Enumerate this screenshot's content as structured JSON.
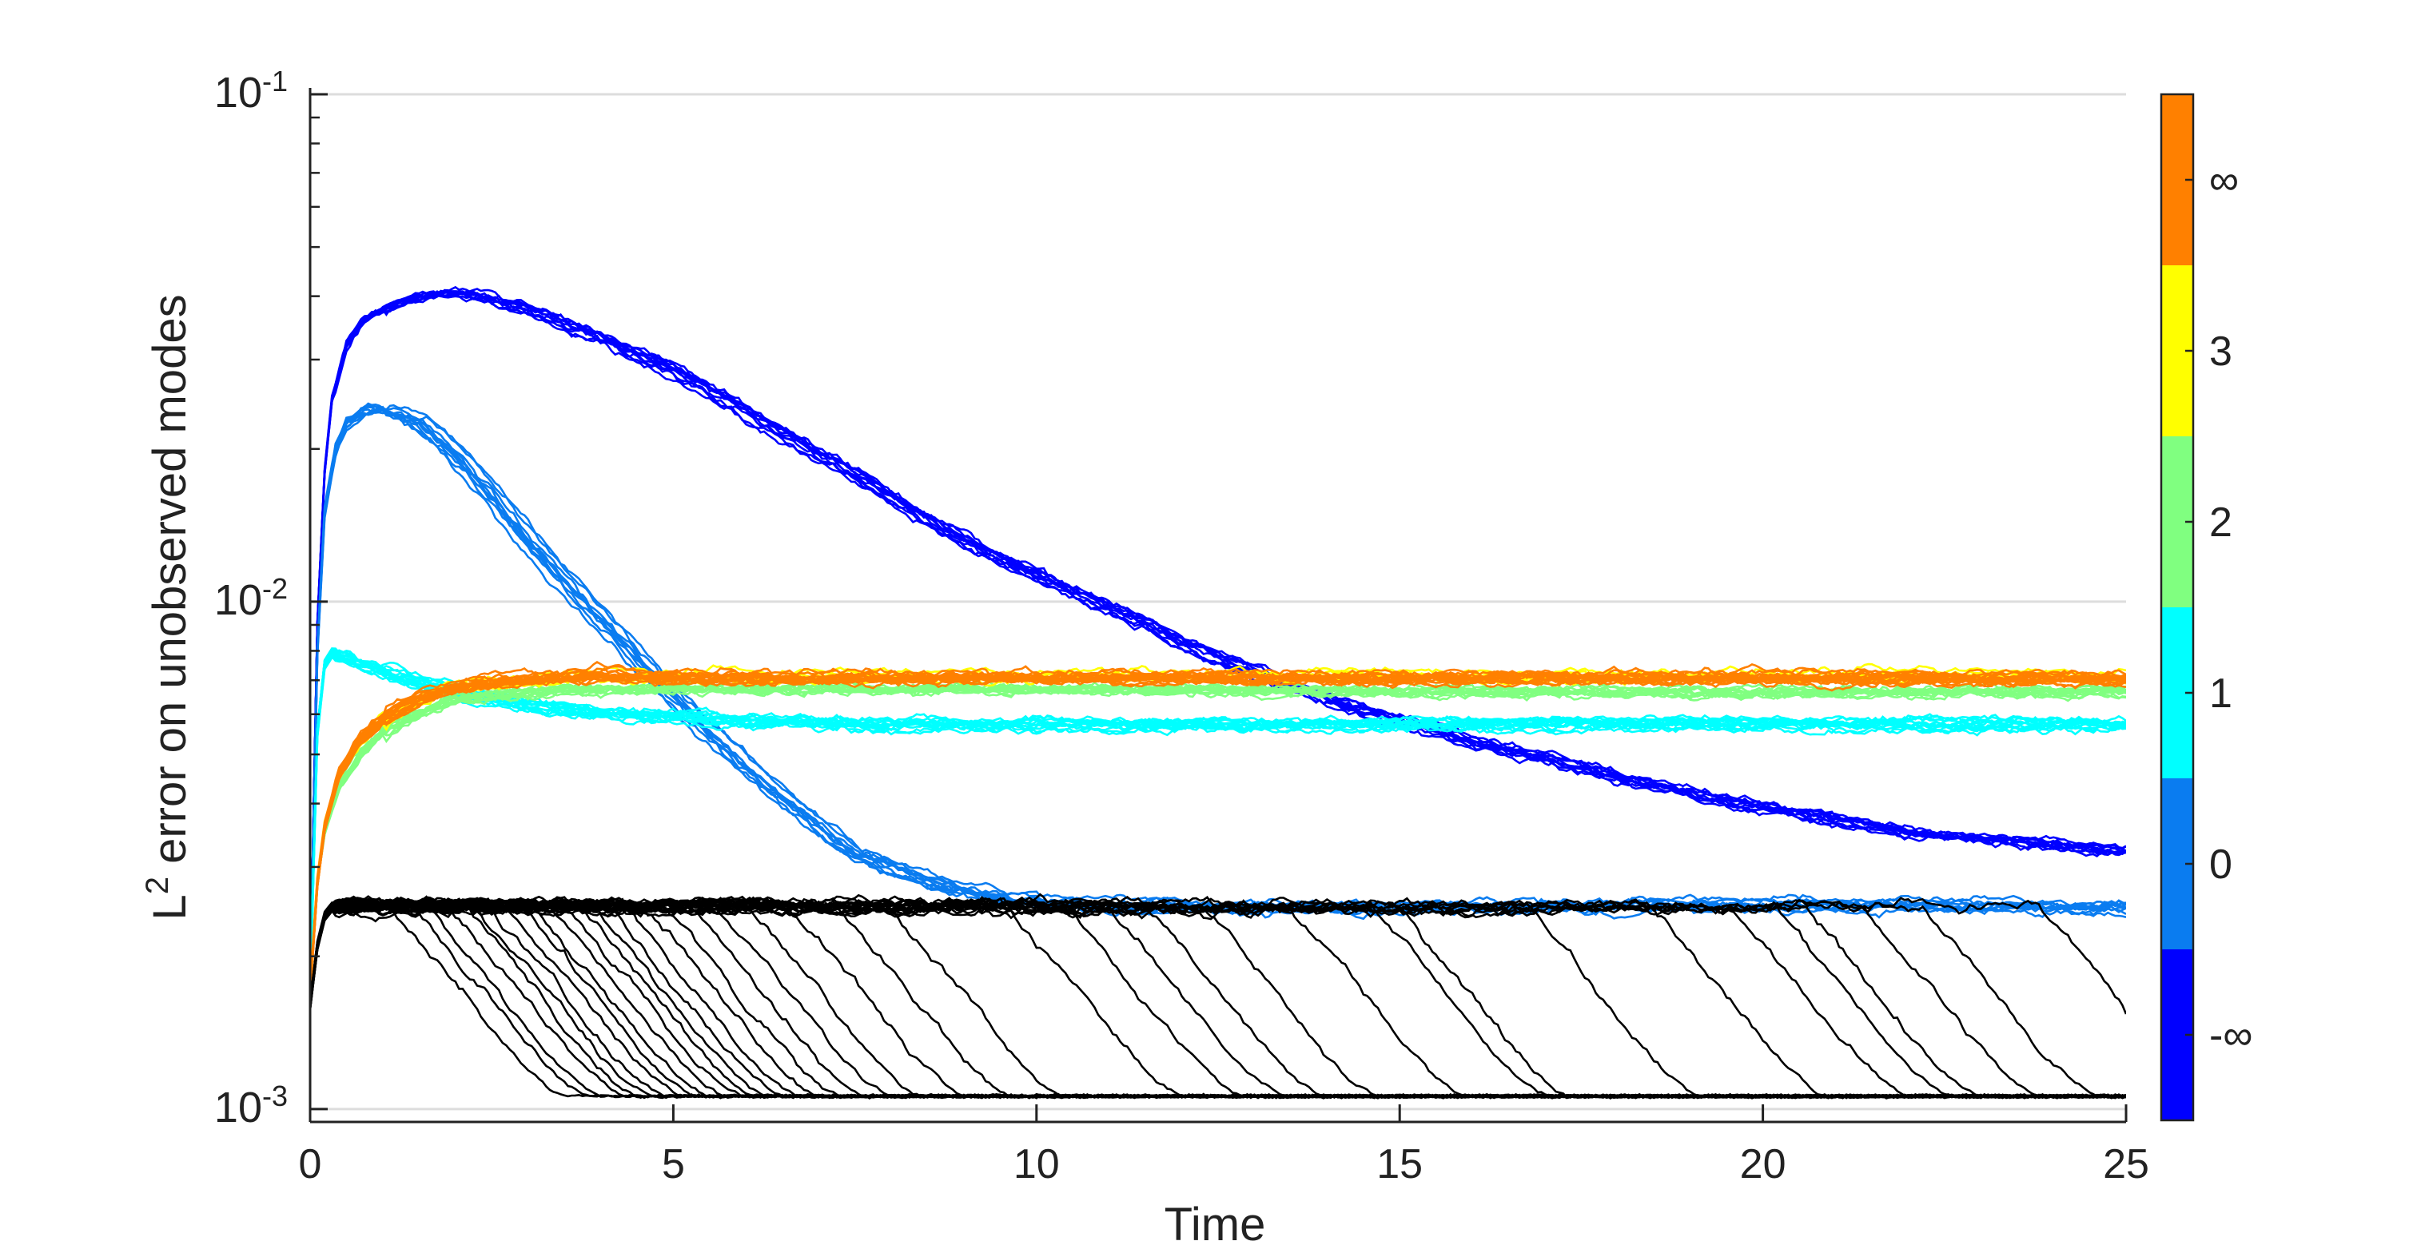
{
  "chart_data": {
    "type": "line",
    "title": "",
    "xlabel": "Time",
    "ylabel": "L",
    "ylabel_sup": "2",
    "ylabel_rest": " error on unobserved modes",
    "xlim": [
      0,
      25
    ],
    "ylim": [
      0.00095,
      0.1
    ],
    "yscale": "log",
    "grid": "y-major",
    "x_ticks": [
      0,
      5,
      10,
      15,
      20,
      25
    ],
    "x_tick_labels": [
      "0",
      "5",
      "10",
      "15",
      "20",
      "25"
    ],
    "y_ticks": [
      {
        "value": 0.1,
        "base": "10",
        "exp": "-1"
      },
      {
        "value": 0.01,
        "base": "10",
        "exp": "-2"
      },
      {
        "value": 0.001,
        "base": "10",
        "exp": "-3"
      }
    ],
    "colorbar": {
      "position": "right",
      "segments": [
        {
          "label": "-∞",
          "color": "#0000ff"
        },
        {
          "label": "0",
          "color": "#0a7cf0"
        },
        {
          "label": "1",
          "color": "#00ffff"
        },
        {
          "label": "2",
          "color": "#80ff80"
        },
        {
          "label": "3",
          "color": "#ffff00"
        },
        {
          "label": "∞",
          "color": "#ff8000"
        }
      ]
    },
    "series": [
      {
        "name": "-∞",
        "color": "#0000ff",
        "count": 10,
        "x": [
          0,
          0.1,
          0.2,
          0.3,
          0.5,
          0.75,
          1,
          1.5,
          2,
          2.5,
          3,
          4,
          5,
          6,
          7,
          8,
          9,
          10,
          11,
          12,
          13,
          14,
          15,
          16,
          17,
          18,
          19,
          20,
          21,
          22,
          23,
          24,
          25
        ],
        "y": [
          0.0017,
          0.009,
          0.018,
          0.025,
          0.032,
          0.036,
          0.038,
          0.0398,
          0.0405,
          0.0395,
          0.0375,
          0.033,
          0.0285,
          0.0235,
          0.0195,
          0.016,
          0.0132,
          0.0112,
          0.0097,
          0.0083,
          0.0073,
          0.0064,
          0.0058,
          0.0053,
          0.0049,
          0.0045,
          0.0042,
          0.0039,
          0.0037,
          0.0035,
          0.0034,
          0.0033,
          0.0032
        ]
      },
      {
        "name": "0",
        "color": "#0a7cf0",
        "count": 10,
        "x": [
          0,
          0.1,
          0.2,
          0.35,
          0.5,
          0.75,
          1,
          1.5,
          2,
          2.5,
          3,
          3.5,
          4,
          4.5,
          5,
          5.5,
          6,
          6.5,
          7,
          7.5,
          8,
          8.5,
          9,
          10,
          12,
          15,
          20,
          25
        ],
        "y": [
          0.0017,
          0.008,
          0.015,
          0.02,
          0.0225,
          0.0238,
          0.024,
          0.0225,
          0.0195,
          0.0162,
          0.0132,
          0.011,
          0.0092,
          0.0077,
          0.0065,
          0.0055,
          0.0047,
          0.0041,
          0.0036,
          0.0032,
          0.003,
          0.0028,
          0.0027,
          0.00255,
          0.0025,
          0.0025,
          0.00252,
          0.0025
        ]
      },
      {
        "name": "1",
        "color": "#00ffff",
        "count": 14,
        "x": [
          0,
          0.1,
          0.2,
          0.3,
          0.5,
          1,
          2,
          3,
          4,
          6,
          8,
          10,
          15,
          20,
          25
        ],
        "y": [
          0.0017,
          0.0055,
          0.0075,
          0.0079,
          0.0077,
          0.0072,
          0.0066,
          0.0062,
          0.006,
          0.0058,
          0.0057,
          0.0057,
          0.0057,
          0.0057,
          0.0057
        ]
      },
      {
        "name": "2",
        "color": "#80ff80",
        "count": 12,
        "x": [
          0,
          0.1,
          0.2,
          0.4,
          0.7,
          1,
          1.5,
          2,
          3,
          4,
          6,
          10,
          15,
          20,
          25
        ],
        "y": [
          0.0017,
          0.0028,
          0.0035,
          0.0043,
          0.005,
          0.0055,
          0.006,
          0.0064,
          0.0066,
          0.0067,
          0.0067,
          0.0067,
          0.0066,
          0.0066,
          0.0066
        ]
      },
      {
        "name": "3",
        "color": "#ffff00",
        "count": 6,
        "x": [
          0,
          0.1,
          0.2,
          0.4,
          0.7,
          1,
          1.5,
          2,
          3,
          4,
          6,
          10,
          15,
          20,
          25
        ],
        "y": [
          0.0017,
          0.0028,
          0.0036,
          0.0045,
          0.0053,
          0.0058,
          0.0064,
          0.0068,
          0.007,
          0.0071,
          0.0071,
          0.0071,
          0.0071,
          0.0071,
          0.0071
        ]
      },
      {
        "name": "∞",
        "color": "#ff8000",
        "count": 16,
        "x": [
          0,
          0.1,
          0.2,
          0.4,
          0.7,
          1,
          1.5,
          2,
          3,
          4,
          6,
          10,
          15,
          20,
          25
        ],
        "y": [
          0.0017,
          0.0028,
          0.0036,
          0.0046,
          0.0054,
          0.0059,
          0.0065,
          0.0068,
          0.0071,
          0.0072,
          0.0071,
          0.0071,
          0.0071,
          0.0071,
          0.0071
        ]
      },
      {
        "name": "black",
        "color": "#000000",
        "count": 40,
        "plateau_x": [
          0,
          0.1,
          0.2,
          0.3,
          0.5,
          1,
          25
        ],
        "plateau_y": [
          0.0016,
          0.0021,
          0.0024,
          0.0025,
          0.00252,
          0.00252,
          0.0025
        ],
        "floor": 0.00106,
        "drop_times": [
          1.1,
          1.4,
          1.6,
          1.9,
          2.1,
          2.3,
          2.5,
          2.7,
          2.9,
          3.1,
          3.3,
          3.5,
          3.7,
          3.9,
          4.1,
          4.3,
          4.6,
          4.9,
          5.2,
          5.6,
          6.0,
          6.6,
          7.2,
          8.0,
          9.6,
          10.4,
          11.0,
          11.5,
          12.3,
          13.5,
          14.6,
          15.0,
          16.8,
          18.5,
          19.6,
          20.2,
          20.6,
          21.4,
          22.2,
          23.8
        ]
      }
    ]
  }
}
